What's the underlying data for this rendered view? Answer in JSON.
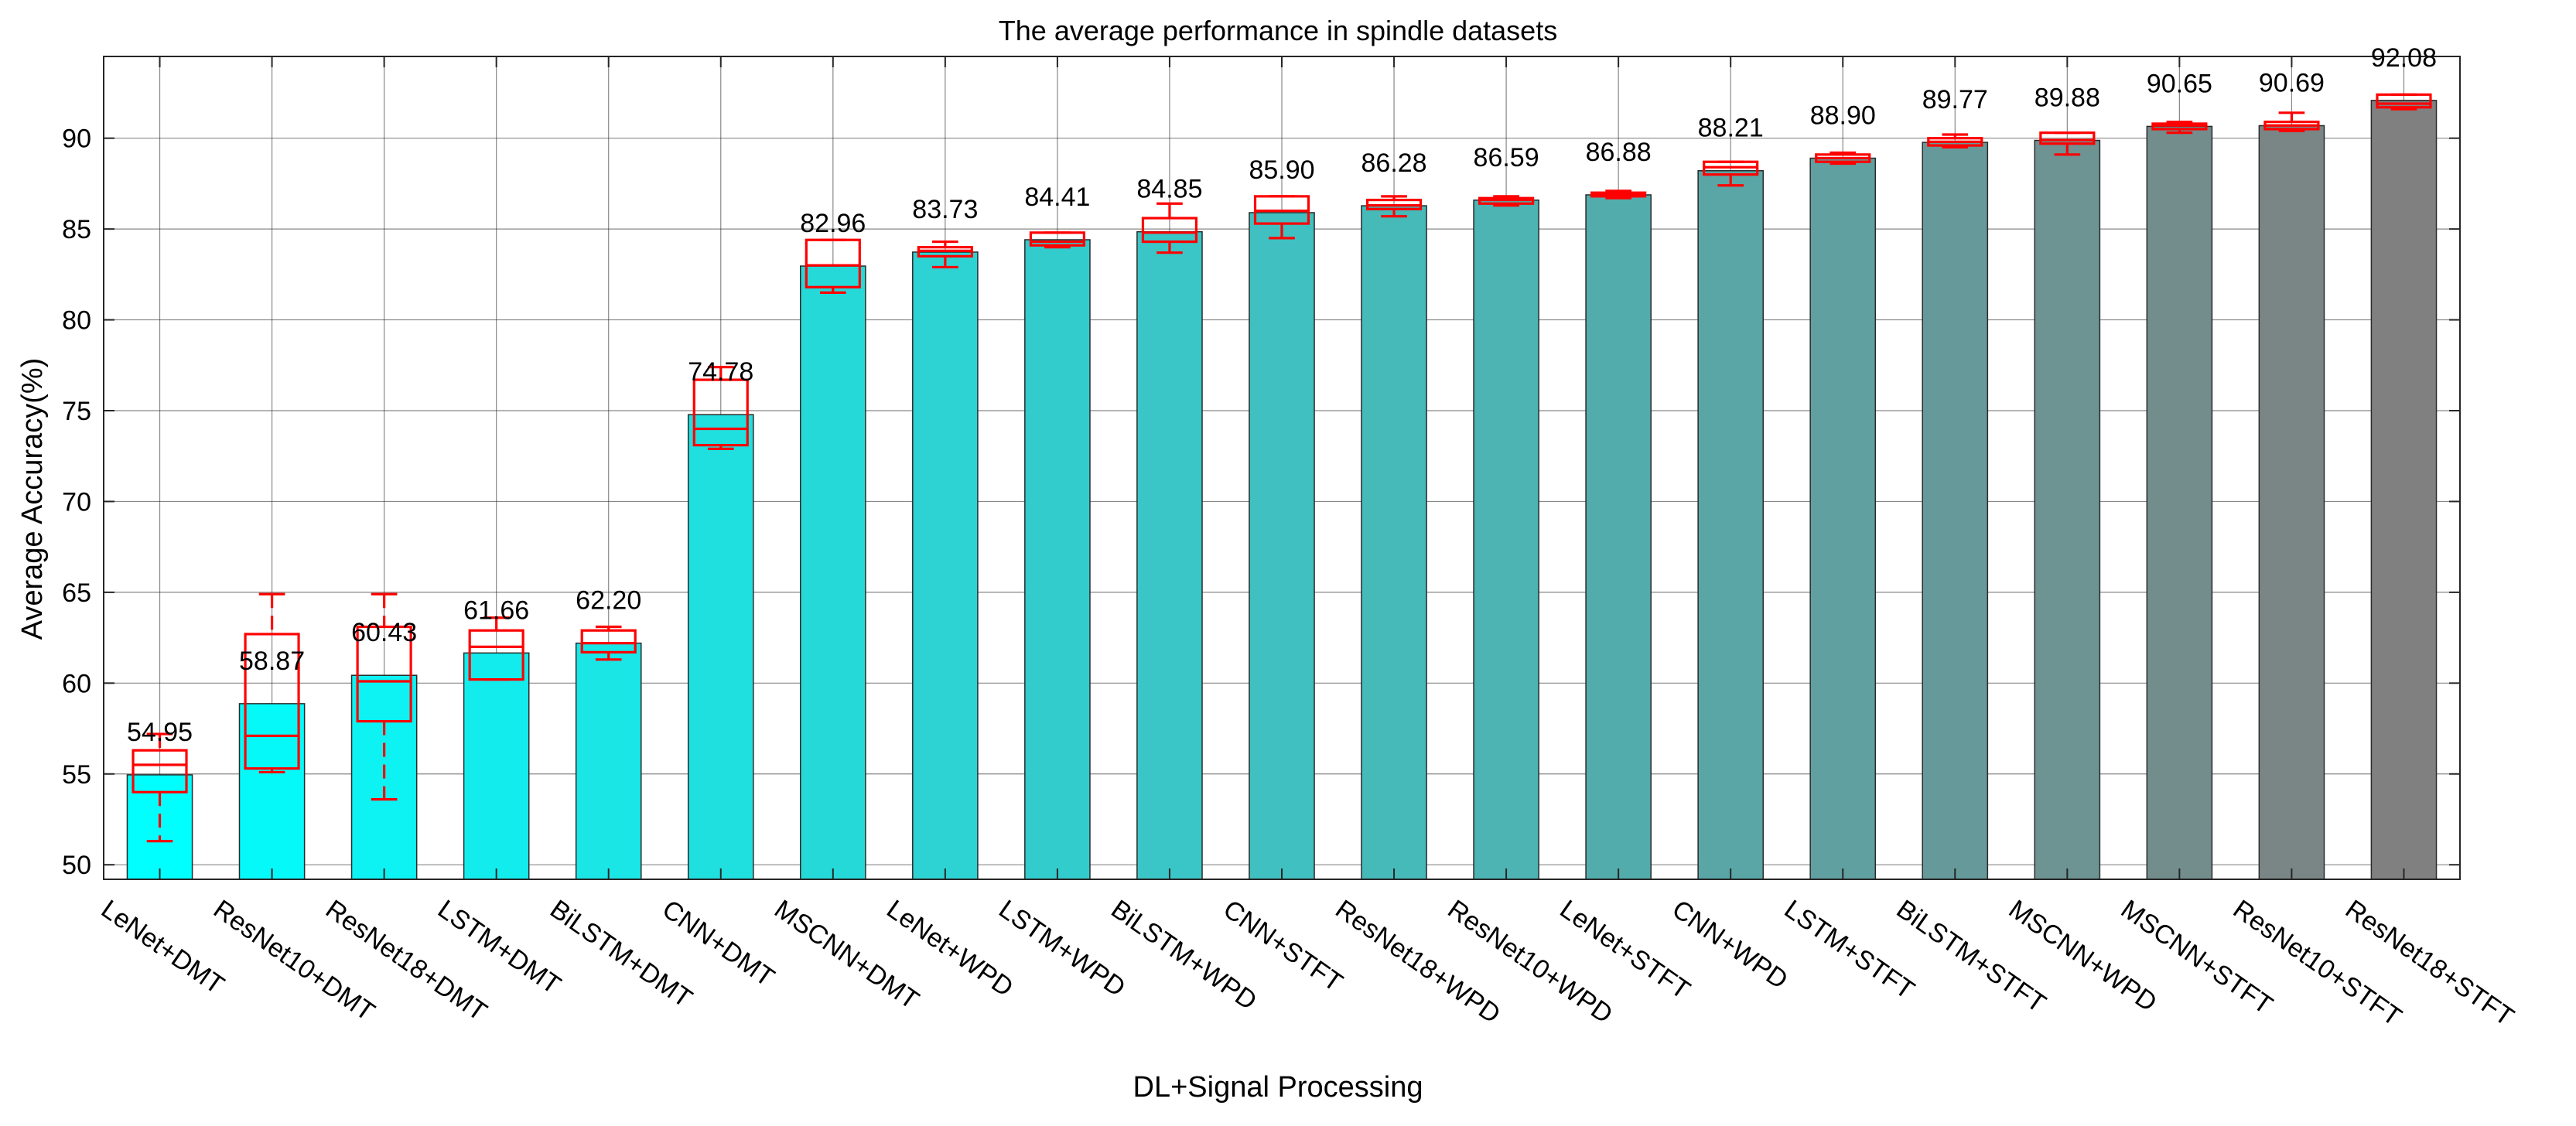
{
  "chart_data": {
    "type": "bar",
    "title": "The average performance in spindle datasets",
    "xlabel": "DL+Signal Processing",
    "ylabel": "Average Accuracy(%)",
    "ylim": [
      49.2,
      94.5
    ],
    "yticks": [
      50,
      55,
      60,
      65,
      70,
      75,
      80,
      85,
      90
    ],
    "grid": true,
    "categories": [
      "LeNet+DMT",
      "ResNet10+DMT",
      "ResNet18+DMT",
      "LSTM+DMT",
      "BiLSTM+DMT",
      "CNN+DMT",
      "MSCNN+DMT",
      "LeNet+WPD",
      "LSTM+WPD",
      "BiLSTM+WPD",
      "CNN+STFT",
      "ResNet18+WPD",
      "ResNet10+WPD",
      "LeNet+STFT",
      "CNN+WPD",
      "LSTM+STFT",
      "BiLSTM+STFT",
      "MSCNN+WPD",
      "MSCNN+STFT",
      "ResNet10+STFT",
      "ResNet18+STFT"
    ],
    "values": [
      54.95,
      58.87,
      60.43,
      61.66,
      62.2,
      74.78,
      82.96,
      83.73,
      84.41,
      84.85,
      85.9,
      86.28,
      86.59,
      86.88,
      88.21,
      88.9,
      89.77,
      89.88,
      90.65,
      90.69,
      92.08
    ],
    "value_labels": [
      "54.95",
      "58.87",
      "60.43",
      "61.66",
      "62.20",
      "74.78",
      "82.96",
      "83.73",
      "84.41",
      "84.85",
      "85.90",
      "86.28",
      "86.59",
      "86.88",
      "88.21",
      "88.90",
      "89.77",
      "89.88",
      "90.65",
      "90.69",
      "92.08"
    ],
    "boxplots": [
      {
        "min": 51.3,
        "q1": 54.0,
        "median": 55.5,
        "q3": 56.3,
        "max": 57.2
      },
      {
        "min": 55.1,
        "q1": 55.3,
        "median": 57.1,
        "q3": 62.7,
        "max": 64.9
      },
      {
        "min": 53.6,
        "q1": 57.9,
        "median": 60.1,
        "q3": 63.1,
        "max": 64.9
      },
      {
        "min": 60.2,
        "q1": 60.2,
        "median": 62.0,
        "q3": 62.9,
        "max": 63.6
      },
      {
        "min": 61.3,
        "q1": 61.7,
        "median": 62.2,
        "q3": 62.9,
        "max": 63.1
      },
      {
        "min": 72.9,
        "q1": 73.1,
        "median": 74.0,
        "q3": 76.7,
        "max": 77.4
      },
      {
        "min": 81.5,
        "q1": 81.8,
        "median": 83.0,
        "q3": 84.4,
        "max": 84.4
      },
      {
        "min": 82.9,
        "q1": 83.5,
        "median": 83.8,
        "q3": 84.0,
        "max": 84.3
      },
      {
        "min": 84.0,
        "q1": 84.1,
        "median": 84.3,
        "q3": 84.8,
        "max": 84.8
      },
      {
        "min": 83.7,
        "q1": 84.3,
        "median": 84.8,
        "q3": 85.6,
        "max": 86.4
      },
      {
        "min": 84.5,
        "q1": 85.3,
        "median": 86.0,
        "q3": 86.8,
        "max": 86.8
      },
      {
        "min": 85.7,
        "q1": 86.1,
        "median": 86.3,
        "q3": 86.6,
        "max": 86.8
      },
      {
        "min": 86.3,
        "q1": 86.4,
        "median": 86.6,
        "q3": 86.7,
        "max": 86.8
      },
      {
        "min": 86.7,
        "q1": 86.8,
        "median": 86.9,
        "q3": 87.0,
        "max": 87.1
      },
      {
        "min": 87.4,
        "q1": 88.0,
        "median": 88.4,
        "q3": 88.7,
        "max": 88.7
      },
      {
        "min": 88.6,
        "q1": 88.7,
        "median": 88.9,
        "q3": 89.1,
        "max": 89.2
      },
      {
        "min": 89.5,
        "q1": 89.6,
        "median": 89.8,
        "q3": 90.0,
        "max": 90.2
      },
      {
        "min": 89.1,
        "q1": 89.7,
        "median": 89.9,
        "q3": 90.3,
        "max": 90.3
      },
      {
        "min": 90.3,
        "q1": 90.5,
        "median": 90.7,
        "q3": 90.8,
        "max": 90.9
      },
      {
        "min": 90.4,
        "q1": 90.5,
        "median": 90.7,
        "q3": 90.9,
        "max": 91.4
      },
      {
        "min": 91.6,
        "q1": 91.7,
        "median": 91.9,
        "q3": 92.4,
        "max": 92.4
      }
    ],
    "bar_color_start": "#00FFFF",
    "bar_color_end": "#808080",
    "box_color": "#FF0000"
  }
}
